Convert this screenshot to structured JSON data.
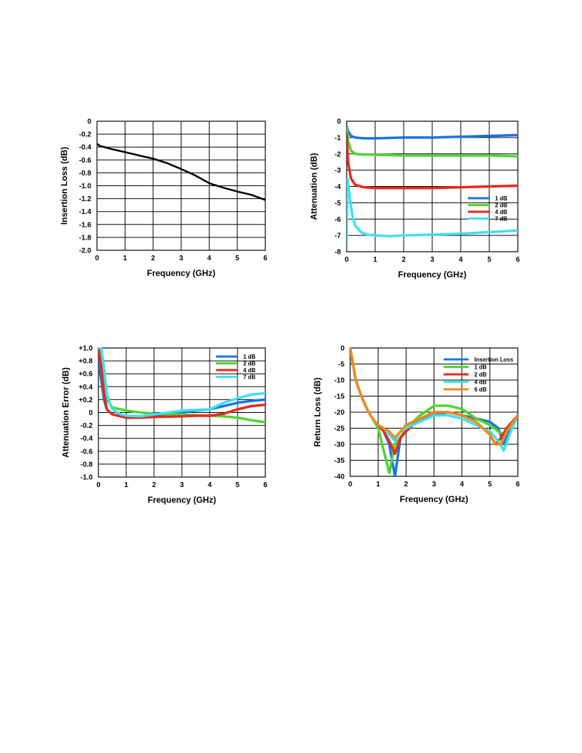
{
  "chart_data": [
    {
      "type": "line",
      "xlabel": "Frequency (GHz)",
      "ylabel": "Insertion Loss (dB)",
      "xlim": [
        0,
        6
      ],
      "ylim": [
        -2.0,
        0
      ],
      "x_ticks": [
        "0",
        "1",
        "2",
        "3",
        "4",
        "5",
        "6"
      ],
      "y_ticks": [
        "0",
        "-0.2",
        "-0.4",
        "-0.6",
        "-0.8",
        "-1.0",
        "-1.2",
        "-1.4",
        "-1.6",
        "-1.8",
        "-2.0"
      ],
      "grid": true,
      "series": [
        {
          "color": "#000000",
          "x": [
            0,
            0.1,
            0.5,
            1.0,
            1.5,
            2.0,
            2.5,
            3.0,
            3.5,
            4.0,
            4.5,
            5.0,
            5.5,
            6.0
          ],
          "y": [
            -0.35,
            -0.38,
            -0.43,
            -0.48,
            -0.53,
            -0.58,
            -0.65,
            -0.74,
            -0.84,
            -0.96,
            -1.03,
            -1.09,
            -1.14,
            -1.22
          ]
        }
      ]
    },
    {
      "type": "line",
      "xlabel": "Frequency (GHz)",
      "ylabel": "Attenuation (dB)",
      "xlim": [
        0,
        6
      ],
      "ylim": [
        -8,
        0
      ],
      "x_ticks": [
        "0",
        "1",
        "2",
        "3",
        "4",
        "5",
        "6"
      ],
      "y_ticks": [
        "0",
        "-1",
        "-2",
        "-3",
        "-4",
        "-5",
        "-6",
        "-7",
        "-8"
      ],
      "grid": true,
      "legend": "right",
      "series": [
        {
          "name": "1 dB",
          "color": "#1a73e8",
          "x": [
            0,
            0.05,
            0.15,
            0.3,
            0.6,
            1.0,
            2.0,
            3.0,
            4.0,
            5.0,
            6.0
          ],
          "y": [
            -0.3,
            -0.6,
            -0.9,
            -1.0,
            -1.05,
            -1.05,
            -1.0,
            -1.0,
            -0.95,
            -0.9,
            -0.85
          ]
        },
        {
          "name": "2 dB",
          "color": "#4cd632",
          "x": [
            0,
            0.05,
            0.15,
            0.3,
            0.6,
            1.0,
            2.0,
            3.0,
            4.0,
            5.0,
            6.0
          ],
          "y": [
            -0.4,
            -1.2,
            -1.8,
            -2.0,
            -2.05,
            -2.05,
            -2.1,
            -2.1,
            -2.1,
            -2.1,
            -2.15
          ]
        },
        {
          "name": "4 dB",
          "color": "#e8281a",
          "x": [
            0,
            0.05,
            0.15,
            0.3,
            0.6,
            1.0,
            2.0,
            3.0,
            4.0,
            5.0,
            6.0
          ],
          "y": [
            -0.8,
            -2.5,
            -3.5,
            -3.9,
            -4.05,
            -4.1,
            -4.1,
            -4.1,
            -4.05,
            -4.0,
            -3.95
          ]
        },
        {
          "name": "7 dB",
          "color": "#40e0f0",
          "x": [
            0,
            0.03,
            0.1,
            0.2,
            0.3,
            0.5,
            0.7,
            1.0,
            1.5,
            2.0,
            3.0,
            4.0,
            5.0,
            6.0
          ],
          "y": [
            -7.8,
            -3.5,
            -4.5,
            -5.8,
            -6.4,
            -6.8,
            -6.95,
            -7.0,
            -7.05,
            -7.0,
            -6.95,
            -6.9,
            -6.8,
            -6.7
          ]
        }
      ]
    },
    {
      "type": "line",
      "xlabel": "Frequency (GHz)",
      "ylabel": "Attenuation Error (dB)",
      "xlim": [
        0,
        6
      ],
      "ylim": [
        -1.0,
        1.0
      ],
      "x_ticks": [
        "0",
        "1",
        "2",
        "3",
        "4",
        "5",
        "6"
      ],
      "y_ticks": [
        "+1.0",
        "+0.8",
        "+0.6",
        "+0.4",
        "+0.2",
        "0",
        "-0.2",
        "-0.4",
        "-0.6",
        "-0.8",
        "-1.0"
      ],
      "grid": true,
      "legend": "top-right",
      "series": [
        {
          "name": "1 dB",
          "color": "#1a73e8",
          "x": [
            0,
            0.1,
            0.2,
            0.3,
            0.5,
            0.8,
            1.0,
            1.5,
            2.0,
            3.0,
            3.5,
            4.0,
            4.5,
            5.0,
            5.5,
            6.0
          ],
          "y": [
            0.8,
            0.5,
            0.2,
            0.05,
            -0.03,
            -0.05,
            -0.06,
            -0.07,
            -0.05,
            0.0,
            0.03,
            0.05,
            0.1,
            0.15,
            0.18,
            0.2
          ]
        },
        {
          "name": "2 dB",
          "color": "#4cd632",
          "x": [
            0,
            0.1,
            0.2,
            0.3,
            0.5,
            0.8,
            1.0,
            1.5,
            2.0,
            3.0,
            3.5,
            4.0,
            4.5,
            5.0,
            5.5,
            6.0
          ],
          "y": [
            1.0,
            0.9,
            0.5,
            0.2,
            0.08,
            0.05,
            0.03,
            0.0,
            -0.02,
            -0.03,
            -0.04,
            -0.05,
            -0.06,
            -0.08,
            -0.12,
            -0.15
          ]
        },
        {
          "name": "4 dB",
          "color": "#e8281a",
          "x": [
            0,
            0.1,
            0.2,
            0.3,
            0.5,
            0.8,
            1.0,
            1.5,
            2.0,
            3.0,
            3.5,
            4.0,
            4.5,
            5.0,
            5.5,
            6.0
          ],
          "y": [
            1.0,
            0.7,
            0.3,
            0.05,
            -0.03,
            -0.06,
            -0.08,
            -0.08,
            -0.07,
            -0.06,
            -0.05,
            -0.05,
            -0.02,
            0.05,
            0.1,
            0.12
          ]
        },
        {
          "name": "7 dB",
          "color": "#40e0f0",
          "x": [
            0,
            0.1,
            0.2,
            0.3,
            0.4,
            0.5,
            0.8,
            1.0,
            1.5,
            2.0,
            3.0,
            3.5,
            4.0,
            4.5,
            5.0,
            5.5,
            6.0
          ],
          "y": [
            1.0,
            1.0,
            0.7,
            0.3,
            0.15,
            0.05,
            -0.03,
            -0.05,
            -0.06,
            -0.03,
            0.03,
            0.04,
            0.05,
            0.15,
            0.22,
            0.28,
            0.3
          ]
        }
      ]
    },
    {
      "type": "line",
      "xlabel": "Frequency (GHz)",
      "ylabel": "Return Loss (dB)",
      "xlim": [
        0,
        6
      ],
      "ylim": [
        -40,
        0
      ],
      "x_ticks": [
        "0",
        "1",
        "2",
        "3",
        "4",
        "5",
        "6"
      ],
      "y_ticks": [
        "0",
        "-5",
        "-10",
        "-15",
        "-20",
        "-25",
        "-30",
        "-35",
        "-40"
      ],
      "grid": true,
      "legend": "top-right",
      "series": [
        {
          "name": "Insertion Loss",
          "color": "#1a73e8",
          "x": [
            0,
            0.2,
            0.4,
            0.6,
            0.8,
            1.0,
            1.2,
            1.4,
            1.6,
            1.8,
            2.0,
            2.5,
            3.0,
            3.5,
            4.0,
            4.5,
            5.0,
            5.3,
            5.5,
            5.7,
            6.0
          ],
          "y": [
            0,
            -10,
            -15,
            -19,
            -22,
            -24,
            -26,
            -30,
            -40,
            -28,
            -25,
            -22,
            -21,
            -20,
            -21,
            -22,
            -23,
            -25,
            -30,
            -26,
            -21
          ]
        },
        {
          "name": "1 dB",
          "color": "#4cd632",
          "x": [
            0,
            0.2,
            0.4,
            0.6,
            0.8,
            1.0,
            1.2,
            1.4,
            1.6,
            1.8,
            2.0,
            2.5,
            3.0,
            3.5,
            4.0,
            4.5,
            5.0,
            5.3,
            5.5,
            5.7,
            6.0
          ],
          "y": [
            0,
            -10,
            -15,
            -19,
            -22,
            -25,
            -32,
            -39,
            -30,
            -28,
            -25,
            -21,
            -18,
            -18,
            -19,
            -22,
            -24,
            -26,
            -27,
            -25,
            -21
          ]
        },
        {
          "name": "2 dB",
          "color": "#e8281a",
          "x": [
            0,
            0.2,
            0.4,
            0.6,
            0.8,
            1.0,
            1.2,
            1.4,
            1.6,
            1.8,
            2.0,
            2.5,
            3.0,
            3.5,
            4.0,
            4.5,
            5.0,
            5.2,
            5.4,
            5.6,
            6.0
          ],
          "y": [
            0,
            -10,
            -15,
            -19,
            -22,
            -24,
            -26,
            -29,
            -33,
            -28,
            -26,
            -22,
            -20,
            -20,
            -21,
            -23,
            -27,
            -30,
            -28,
            -25,
            -21
          ]
        },
        {
          "name": "4 dB",
          "color": "#40e0f0",
          "x": [
            0,
            0.2,
            0.4,
            0.6,
            0.8,
            1.0,
            1.2,
            1.4,
            1.6,
            1.8,
            2.0,
            2.5,
            3.0,
            3.5,
            4.0,
            4.5,
            5.0,
            5.3,
            5.5,
            5.7,
            6.0
          ],
          "y": [
            0,
            -10,
            -15,
            -19,
            -22,
            -24,
            -25,
            -27,
            -29,
            -26,
            -25,
            -23,
            -21,
            -21,
            -22,
            -24,
            -26,
            -29,
            -32,
            -27,
            -21
          ]
        },
        {
          "name": "6 dB",
          "color": "#f08a1a",
          "x": [
            0,
            0.2,
            0.4,
            0.6,
            0.8,
            1.0,
            1.2,
            1.4,
            1.6,
            1.8,
            2.0,
            2.5,
            3.0,
            3.5,
            4.0,
            4.5,
            5.0,
            5.2,
            5.4,
            5.6,
            6.0
          ],
          "y": [
            0,
            -10,
            -15,
            -19,
            -22,
            -24,
            -25,
            -26,
            -28,
            -26,
            -24,
            -22,
            -20,
            -20,
            -21,
            -23,
            -27,
            -30,
            -30,
            -26,
            -21
          ]
        }
      ]
    }
  ]
}
